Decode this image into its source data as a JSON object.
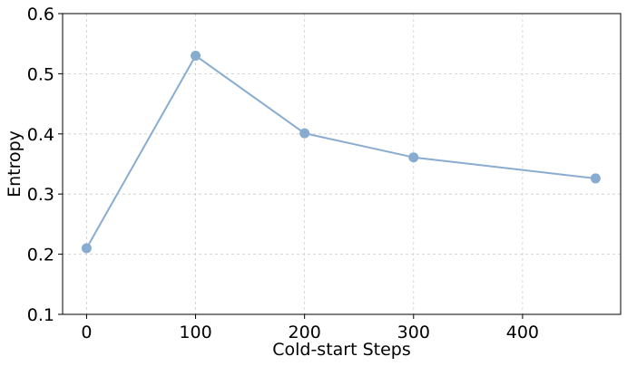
{
  "chart_data": {
    "type": "line",
    "title": "",
    "xlabel": "Cold-start Steps",
    "ylabel": "Entropy",
    "xlim": [
      -22,
      490
    ],
    "ylim": [
      0.1,
      0.6
    ],
    "xticks": [
      0,
      100,
      200,
      300,
      400
    ],
    "xtick_labels": [
      "0",
      "100",
      "200",
      "300",
      "400"
    ],
    "yticks": [
      0.1,
      0.2,
      0.3,
      0.4,
      0.5,
      0.6
    ],
    "ytick_labels": [
      "0.1",
      "0.2",
      "0.3",
      "0.4",
      "0.5",
      "0.6"
    ],
    "grid": true,
    "legend": "none",
    "series": [
      {
        "color": "#88acd0",
        "marker": "circle",
        "points": [
          {
            "x": 0,
            "y": 0.21
          },
          {
            "x": 100,
            "y": 0.53
          },
          {
            "x": 200,
            "y": 0.401
          },
          {
            "x": 300,
            "y": 0.361
          },
          {
            "x": 467,
            "y": 0.326
          }
        ]
      }
    ]
  }
}
